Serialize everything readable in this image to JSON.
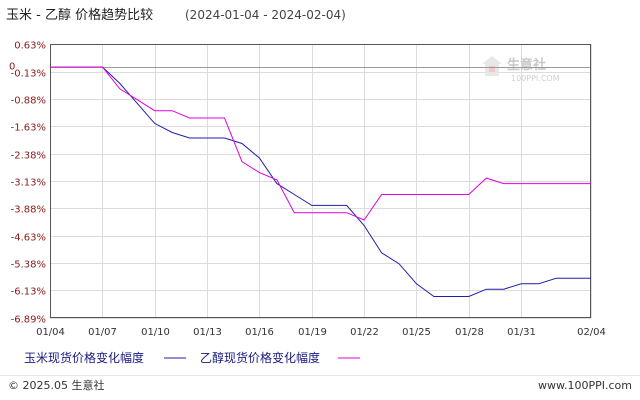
{
  "header": {
    "title": "玉米 - 乙醇 价格趋势比较",
    "date_range": "(2024-01-04 - 2024-02-04)"
  },
  "watermark": {
    "name": "生意社",
    "url": "100PPI.COM"
  },
  "footer": {
    "copyright": "© 2025.05 生意社",
    "site": "www.100PPI.com"
  },
  "colors": {
    "series_corn": "#1f1fa8",
    "series_ethanol": "#e000e0",
    "grid": "#dcdcdc",
    "axis": "#555555",
    "tick_label": "#8b1a1a"
  },
  "chart_data": {
    "type": "line",
    "y_unit": "%",
    "y_ticks": [
      "0.63%",
      "-0.13%",
      "-0.88%",
      "-1.63%",
      "-2.38%",
      "-3.13%",
      "-3.88%",
      "-4.63%",
      "-5.38%",
      "-6.13%",
      "-6.89%"
    ],
    "y_tick_values": [
      0.63,
      -0.13,
      -0.88,
      -1.63,
      -2.38,
      -3.13,
      -3.88,
      -4.63,
      -5.38,
      -6.13,
      -6.89
    ],
    "ylim": [
      -6.89,
      0.63
    ],
    "zero_label": "0",
    "x_start": "2024-01-04",
    "x_end": "2024-02-04",
    "x_ticks": [
      "01/04",
      "01/07",
      "01/10",
      "01/13",
      "01/16",
      "01/19",
      "01/22",
      "01/25",
      "01/28",
      "01/31",
      "02/04"
    ],
    "x_tick_dates": [
      "2024-01-04",
      "2024-01-07",
      "2024-01-10",
      "2024-01-13",
      "2024-01-16",
      "2024-01-19",
      "2024-01-22",
      "2024-01-25",
      "2024-01-28",
      "2024-01-31",
      "2024-02-04"
    ],
    "grid": true,
    "series": [
      {
        "name": "玉米现货价格变化幅度",
        "color": "#1f1fa8",
        "points": [
          {
            "x": "2024-01-04",
            "y": 0.0
          },
          {
            "x": "2024-01-07",
            "y": 0.0
          },
          {
            "x": "2024-01-08",
            "y": -0.45
          },
          {
            "x": "2024-01-09",
            "y": -1.0
          },
          {
            "x": "2024-01-10",
            "y": -1.55
          },
          {
            "x": "2024-01-11",
            "y": -1.8
          },
          {
            "x": "2024-01-12",
            "y": -1.95
          },
          {
            "x": "2024-01-13",
            "y": -1.95
          },
          {
            "x": "2024-01-14",
            "y": -1.95
          },
          {
            "x": "2024-01-15",
            "y": -2.1
          },
          {
            "x": "2024-01-16",
            "y": -2.5
          },
          {
            "x": "2024-01-17",
            "y": -3.2
          },
          {
            "x": "2024-01-18",
            "y": -3.5
          },
          {
            "x": "2024-01-19",
            "y": -3.8
          },
          {
            "x": "2024-01-20",
            "y": -3.8
          },
          {
            "x": "2024-01-21",
            "y": -3.8
          },
          {
            "x": "2024-01-22",
            "y": -4.35
          },
          {
            "x": "2024-01-23",
            "y": -5.1
          },
          {
            "x": "2024-01-24",
            "y": -5.4
          },
          {
            "x": "2024-01-25",
            "y": -5.95
          },
          {
            "x": "2024-01-26",
            "y": -6.3
          },
          {
            "x": "2024-01-27",
            "y": -6.3
          },
          {
            "x": "2024-01-28",
            "y": -6.3
          },
          {
            "x": "2024-01-29",
            "y": -6.1
          },
          {
            "x": "2024-01-30",
            "y": -6.1
          },
          {
            "x": "2024-01-31",
            "y": -5.95
          },
          {
            "x": "2024-02-01",
            "y": -5.95
          },
          {
            "x": "2024-02-02",
            "y": -5.8
          },
          {
            "x": "2024-02-03",
            "y": -5.8
          },
          {
            "x": "2024-02-04",
            "y": -5.8
          }
        ]
      },
      {
        "name": "乙醇现货价格变化幅度",
        "color": "#e000e0",
        "points": [
          {
            "x": "2024-01-04",
            "y": 0.0
          },
          {
            "x": "2024-01-07",
            "y": 0.0
          },
          {
            "x": "2024-01-08",
            "y": -0.6
          },
          {
            "x": "2024-01-09",
            "y": -0.9
          },
          {
            "x": "2024-01-10",
            "y": -1.2
          },
          {
            "x": "2024-01-11",
            "y": -1.2
          },
          {
            "x": "2024-01-12",
            "y": -1.4
          },
          {
            "x": "2024-01-13",
            "y": -1.4
          },
          {
            "x": "2024-01-14",
            "y": -1.4
          },
          {
            "x": "2024-01-15",
            "y": -2.6
          },
          {
            "x": "2024-01-16",
            "y": -2.9
          },
          {
            "x": "2024-01-17",
            "y": -3.1
          },
          {
            "x": "2024-01-18",
            "y": -4.0
          },
          {
            "x": "2024-01-19",
            "y": -4.0
          },
          {
            "x": "2024-01-20",
            "y": -4.0
          },
          {
            "x": "2024-01-21",
            "y": -4.0
          },
          {
            "x": "2024-01-22",
            "y": -4.2
          },
          {
            "x": "2024-01-23",
            "y": -3.5
          },
          {
            "x": "2024-01-24",
            "y": -3.5
          },
          {
            "x": "2024-01-25",
            "y": -3.5
          },
          {
            "x": "2024-01-26",
            "y": -3.5
          },
          {
            "x": "2024-01-27",
            "y": -3.5
          },
          {
            "x": "2024-01-28",
            "y": -3.5
          },
          {
            "x": "2024-01-29",
            "y": -3.05
          },
          {
            "x": "2024-01-30",
            "y": -3.2
          },
          {
            "x": "2024-01-31",
            "y": -3.2
          },
          {
            "x": "2024-02-01",
            "y": -3.2
          },
          {
            "x": "2024-02-02",
            "y": -3.2
          },
          {
            "x": "2024-02-03",
            "y": -3.2
          },
          {
            "x": "2024-02-04",
            "y": -3.2
          }
        ]
      }
    ]
  }
}
